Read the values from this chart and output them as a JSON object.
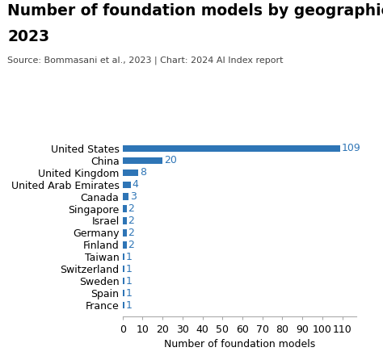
{
  "title_line1": "Number of foundation models by geographic area,",
  "title_line2": "2023",
  "source": "Source: Bommasani et al., 2023 | Chart: 2024 AI Index report",
  "xlabel": "Number of foundation models",
  "categories": [
    "France",
    "Spain",
    "Sweden",
    "Switzerland",
    "Taiwan",
    "Finland",
    "Germany",
    "Israel",
    "Singapore",
    "Canada",
    "United Arab Emirates",
    "United Kingdom",
    "China",
    "United States"
  ],
  "values": [
    1,
    1,
    1,
    1,
    1,
    2,
    2,
    2,
    2,
    3,
    4,
    8,
    20,
    109
  ],
  "bar_color": "#2E75B6",
  "label_color": "#2E75B6",
  "xlim_max": 117,
  "xticks": [
    0,
    10,
    20,
    30,
    40,
    50,
    60,
    70,
    80,
    90,
    100,
    110
  ],
  "background_color": "#FFFFFF",
  "title_fontsize": 13.5,
  "source_fontsize": 8.0,
  "tick_fontsize": 9,
  "xlabel_fontsize": 9,
  "value_label_fontsize": 9,
  "bar_height": 0.55
}
